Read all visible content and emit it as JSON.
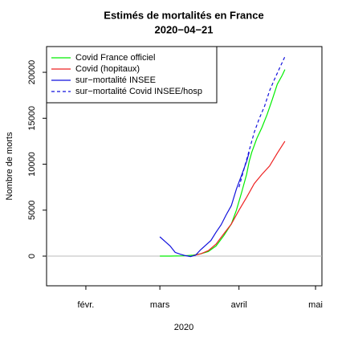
{
  "chart_data": {
    "type": "line",
    "title": "Estimés de mortalités en France",
    "subtitle": "2020−04−21",
    "x_label": "2020",
    "y_label": "Nombre de morts",
    "xlim": [
      16.6,
      124.5
    ],
    "xticks": [
      {
        "value": 32,
        "label": "févr."
      },
      {
        "value": 61,
        "label": "mars"
      },
      {
        "value": 92,
        "label": "avril"
      },
      {
        "value": 122,
        "label": "mai"
      }
    ],
    "ylim": [
      -3230,
      22800
    ],
    "yticks": [
      0,
      5000,
      10000,
      15000,
      20000
    ],
    "reference_line": 0,
    "legend": "top-left",
    "series": [
      {
        "name": "Covid France officiel",
        "color": "#00ee00",
        "x": [
          61,
          65,
          70,
          74,
          77,
          80,
          83,
          86,
          89,
          91,
          93,
          95,
          96,
          97,
          99,
          101,
          103,
          105,
          107,
          109,
          110
        ],
        "values": [
          0,
          0,
          30,
          100,
          250,
          500,
          1100,
          2200,
          3500,
          5000,
          6900,
          8900,
          10300,
          11300,
          12800,
          14000,
          15400,
          17000,
          18700,
          19700,
          20300
        ]
      },
      {
        "name": "Covid (hopitaux)",
        "color": "#ee2222",
        "x": [
          74,
          77,
          80,
          83,
          86,
          89,
          92,
          95,
          98,
          101,
          104,
          107,
          110
        ],
        "values": [
          50,
          250,
          600,
          1300,
          2400,
          3500,
          5000,
          6400,
          7900,
          8900,
          9800,
          11200,
          12500
        ]
      },
      {
        "name": "sur−mortalité INSEE",
        "color": "#1111dd",
        "x": [
          61,
          63,
          65,
          67,
          69,
          71,
          73,
          75,
          77,
          79,
          81,
          83,
          85,
          87,
          89,
          91,
          93,
          95,
          96
        ],
        "values": [
          2100,
          1600,
          1100,
          400,
          200,
          50,
          -50,
          100,
          700,
          1200,
          1700,
          2600,
          3400,
          4500,
          5500,
          7300,
          8800,
          10300,
          11300
        ]
      },
      {
        "name": "sur−mortalité Covid INSEE/hosp",
        "color": "#1111dd",
        "dash": true,
        "x": [
          92,
          94,
          96,
          98,
          100,
          102,
          104,
          106,
          108,
          110
        ],
        "values": [
          7500,
          9500,
          11500,
          13500,
          15000,
          16300,
          18000,
          19300,
          20500,
          21700
        ]
      }
    ]
  }
}
